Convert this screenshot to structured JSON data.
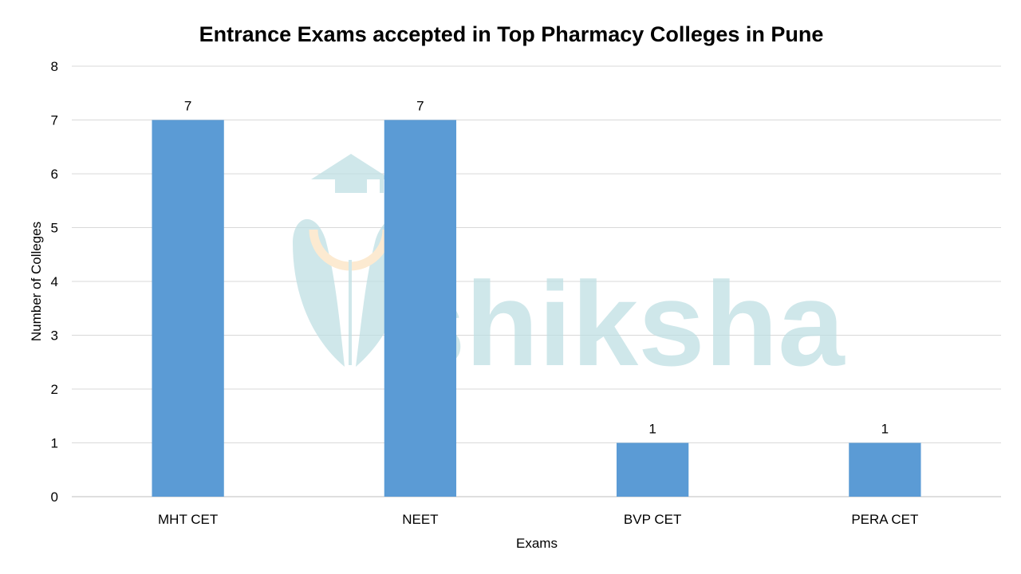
{
  "chart_data": {
    "type": "bar",
    "title": "Entrance Exams accepted in Top Pharmacy Colleges in Pune",
    "xlabel": "Exams",
    "ylabel": "Number of Colleges",
    "categories": [
      "MHT CET",
      "NEET",
      "BVP CET",
      "PERA CET"
    ],
    "values": [
      7,
      7,
      1,
      1
    ],
    "ylim": [
      0,
      8
    ],
    "yticks": [
      "0",
      "1",
      "2",
      "3",
      "4",
      "5",
      "6",
      "7",
      "8"
    ],
    "grid": true,
    "legend": "none",
    "bar_color": "#5B9BD5"
  },
  "watermark": {
    "text": "shiksha",
    "color": "#BFDFE3",
    "accent_color": "#FBE3C2"
  }
}
